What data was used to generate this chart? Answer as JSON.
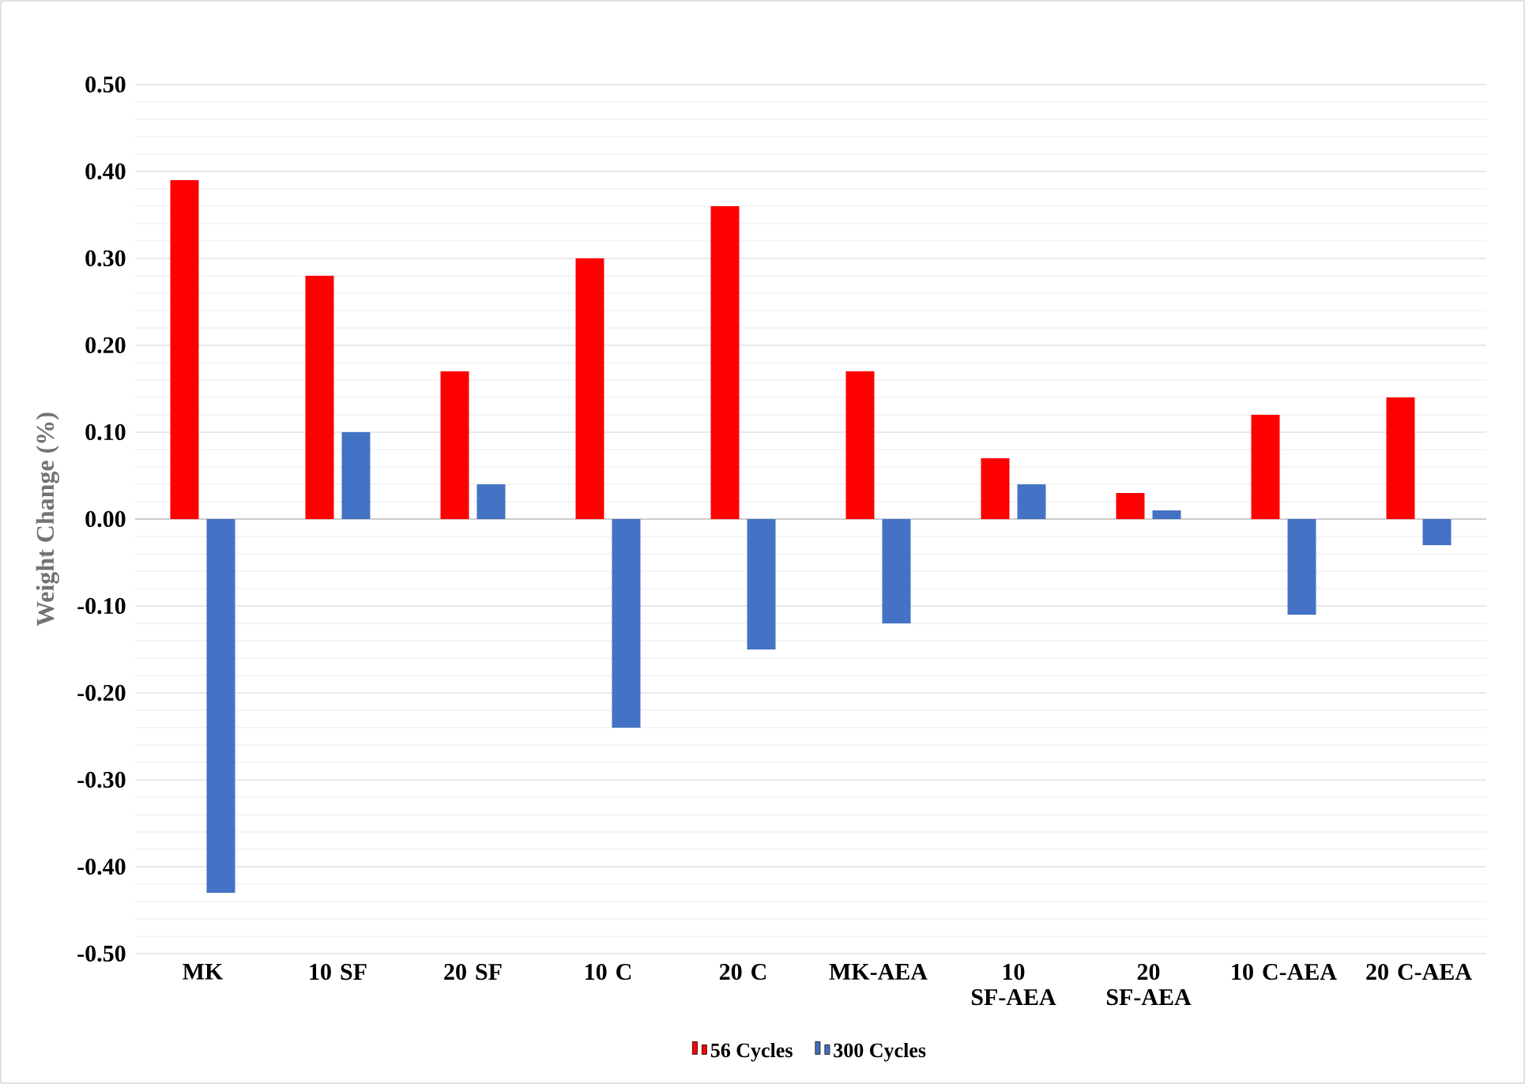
{
  "chart_data": {
    "type": "bar",
    "ylabel": "Weight Change (%)",
    "categories": [
      "MK",
      "10 SF",
      "20 SF",
      "10 C",
      "20 C",
      "MK-AEA",
      "10 SF-AEA",
      "20 SF-AEA",
      "10 C-AEA",
      "20 C-AEA"
    ],
    "series": [
      {
        "name": "56 Cycles",
        "color": "#ff0000",
        "values": [
          0.39,
          0.28,
          0.17,
          0.3,
          0.36,
          0.17,
          0.07,
          0.03,
          0.12,
          0.14
        ]
      },
      {
        "name": "300 Cycles",
        "color": "#4472c4",
        "values": [
          -0.43,
          0.1,
          0.04,
          -0.24,
          -0.15,
          -0.12,
          0.04,
          0.01,
          -0.11,
          -0.03
        ]
      }
    ],
    "ylim": [
      -0.5,
      0.5
    ],
    "yticks": [
      {
        "value": -0.5,
        "label": "-0.50"
      },
      {
        "value": -0.4,
        "label": "-0.40"
      },
      {
        "value": -0.3,
        "label": "-0.30"
      },
      {
        "value": -0.2,
        "label": "-0.20"
      },
      {
        "value": -0.1,
        "label": "-0.10"
      },
      {
        "value": 0,
        "label": "0.00"
      },
      {
        "value": 0.1,
        "label": "0.10"
      },
      {
        "value": 0.2,
        "label": "0.20"
      },
      {
        "value": 0.3,
        "label": "0.30"
      },
      {
        "value": 0.4,
        "label": "0.40"
      },
      {
        "value": 0.5,
        "label": "0.50"
      }
    ],
    "grid": "y",
    "legend": "bottom"
  }
}
